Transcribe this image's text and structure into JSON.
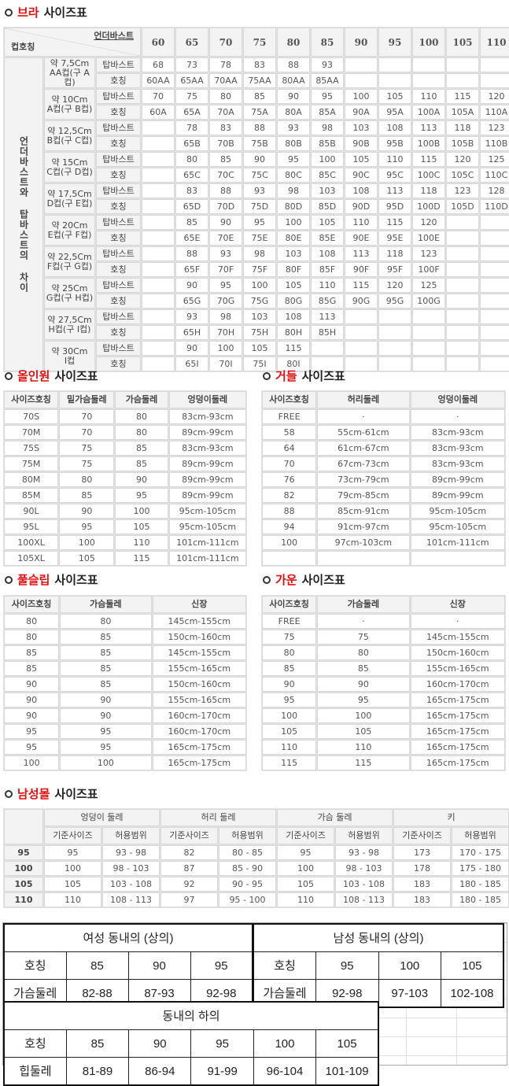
{
  "bra": {
    "title_red": "브라",
    "title_rest": "사이즈표",
    "corner_top": "언더바스트",
    "corner_bottom": "컵호칭",
    "side_label": "언더바스트와 탑바스트의 차이",
    "sizes": [
      "60",
      "65",
      "70",
      "75",
      "80",
      "85",
      "90",
      "95",
      "100",
      "105",
      "110"
    ],
    "top_label": "탑바스트",
    "name_label": "호칭",
    "cups": [
      {
        "depth": "약 7,5Cm",
        "cup": "AA컵(구 A컵)",
        "top": [
          "68",
          "73",
          "78",
          "83",
          "88",
          "93",
          "",
          "",
          "",
          "",
          ""
        ],
        "name": [
          "60AA",
          "65AA",
          "70AA",
          "75AA",
          "80AA",
          "85AA",
          "",
          "",
          "",
          "",
          ""
        ]
      },
      {
        "depth": "약 10Cm",
        "cup": "A컵(구 B컵)",
        "top": [
          "70",
          "75",
          "80",
          "85",
          "90",
          "95",
          "100",
          "105",
          "110",
          "115",
          "120"
        ],
        "name": [
          "60A",
          "65A",
          "70A",
          "75A",
          "80A",
          "85A",
          "90A",
          "95A",
          "100A",
          "105A",
          "110A"
        ]
      },
      {
        "depth": "약 12,5Cm",
        "cup": "B컵(구 C컵)",
        "top": [
          "",
          "78",
          "83",
          "88",
          "93",
          "98",
          "103",
          "108",
          "113",
          "118",
          "123"
        ],
        "name": [
          "",
          "65B",
          "70B",
          "75B",
          "80B",
          "85B",
          "90B",
          "95B",
          "100B",
          "105B",
          "110B"
        ]
      },
      {
        "depth": "약 15Cm",
        "cup": "C컵(구 D컵)",
        "top": [
          "",
          "80",
          "85",
          "90",
          "95",
          "100",
          "105",
          "110",
          "115",
          "120",
          "125"
        ],
        "name": [
          "",
          "65C",
          "70C",
          "75C",
          "80C",
          "85C",
          "90C",
          "95C",
          "100C",
          "105C",
          "110C"
        ]
      },
      {
        "depth": "약 17,5Cm",
        "cup": "D컵(구 E컵)",
        "top": [
          "",
          "83",
          "88",
          "93",
          "98",
          "103",
          "108",
          "113",
          "118",
          "123",
          "128"
        ],
        "name": [
          "",
          "65D",
          "70D",
          "75D",
          "80D",
          "85D",
          "90D",
          "95D",
          "100D",
          "105D",
          "110D"
        ]
      },
      {
        "depth": "약 20Cm",
        "cup": "E컵(구 F컵)",
        "top": [
          "",
          "85",
          "90",
          "95",
          "100",
          "105",
          "110",
          "115",
          "120",
          "",
          ""
        ],
        "name": [
          "",
          "65E",
          "70E",
          "75E",
          "80E",
          "85E",
          "90E",
          "95E",
          "100E",
          "",
          ""
        ]
      },
      {
        "depth": "약 22,5Cm",
        "cup": "F컵(구 G컵)",
        "top": [
          "",
          "88",
          "93",
          "98",
          "103",
          "108",
          "113",
          "118",
          "123",
          "",
          ""
        ],
        "name": [
          "",
          "65F",
          "70F",
          "75F",
          "80F",
          "85F",
          "90F",
          "95F",
          "100F",
          "",
          ""
        ]
      },
      {
        "depth": "약 25Cm",
        "cup": "G컵(구 H컵)",
        "top": [
          "",
          "90",
          "95",
          "100",
          "105",
          "110",
          "115",
          "120",
          "125",
          "",
          ""
        ],
        "name": [
          "",
          "65G",
          "70G",
          "75G",
          "80G",
          "85G",
          "90G",
          "95G",
          "100G",
          "",
          ""
        ]
      },
      {
        "depth": "약 27,5Cm",
        "cup": "H컵(구 I컵)",
        "top": [
          "",
          "93",
          "98",
          "103",
          "108",
          "113",
          "",
          "",
          "",
          "",
          ""
        ],
        "name": [
          "",
          "65H",
          "70H",
          "75H",
          "80H",
          "85H",
          "",
          "",
          "",
          "",
          ""
        ]
      },
      {
        "depth": "약 30Cm",
        "cup": "I컵",
        "top": [
          "",
          "90",
          "100",
          "105",
          "115",
          "",
          "",
          "",
          "",
          "",
          ""
        ],
        "name": [
          "",
          "65I",
          "70I",
          "75I",
          "80I",
          "",
          "",
          "",
          "",
          "",
          ""
        ]
      }
    ]
  },
  "allinone": {
    "title_red": "올인원",
    "title_rest": "사이즈표",
    "headers": [
      "사이즈호칭",
      "밑가슴둘레",
      "가슴둘레",
      "엉덩이둘레"
    ],
    "rows": [
      [
        "70S",
        "70",
        "80",
        "83cm-93cm"
      ],
      [
        "70M",
        "70",
        "80",
        "89cm-99cm"
      ],
      [
        "75S",
        "75",
        "85",
        "83cm-93cm"
      ],
      [
        "75M",
        "75",
        "85",
        "89cm-99cm"
      ],
      [
        "80M",
        "80",
        "90",
        "89cm-99cm"
      ],
      [
        "85M",
        "85",
        "95",
        "89cm-99cm"
      ],
      [
        "90L",
        "90",
        "100",
        "95cm-105cm"
      ],
      [
        "95L",
        "95",
        "105",
        "95cm-105cm"
      ],
      [
        "100XL",
        "100",
        "110",
        "101cm-111cm"
      ],
      [
        "105XL",
        "105",
        "115",
        "101cm-111cm"
      ]
    ]
  },
  "girdle": {
    "title_red": "거들",
    "title_rest": "사이즈표",
    "headers": [
      "사이즈호칭",
      "허리둘레",
      "엉덩이둘레"
    ],
    "rows": [
      [
        "FREE",
        "·",
        "·"
      ],
      [
        "58",
        "55cm-61cm",
        "83cm-93cm"
      ],
      [
        "64",
        "61cm-67cm",
        "83cm-93cm"
      ],
      [
        "70",
        "67cm-73cm",
        "83cm-93cm"
      ],
      [
        "76",
        "73cm-79cm",
        "89cm-99cm"
      ],
      [
        "82",
        "79cm-85cm",
        "89cm-99cm"
      ],
      [
        "88",
        "85cm-91cm",
        "95cm-105cm"
      ],
      [
        "94",
        "91cm-97cm",
        "95cm-105cm"
      ],
      [
        "100",
        "97cm-103cm",
        "101cm-111cm"
      ],
      [
        "",
        "",
        ""
      ]
    ]
  },
  "fullslip": {
    "title_red": "풀슬립",
    "title_rest": "사이즈표",
    "headers": [
      "사이즈호칭",
      "가슴둘레",
      "신장"
    ],
    "rows": [
      [
        "80",
        "80",
        "145cm-155cm"
      ],
      [
        "80",
        "85",
        "150cm-160cm"
      ],
      [
        "85",
        "85",
        "145cm-155cm"
      ],
      [
        "85",
        "85",
        "155cm-165cm"
      ],
      [
        "90",
        "85",
        "150cm-160cm"
      ],
      [
        "90",
        "90",
        "155cm-165cm"
      ],
      [
        "90",
        "90",
        "160cm-170cm"
      ],
      [
        "95",
        "95",
        "160cm-170cm"
      ],
      [
        "95",
        "95",
        "165cm-175cm"
      ],
      [
        "100",
        "100",
        "165cm-175cm"
      ]
    ]
  },
  "gown": {
    "title_red": "가운",
    "title_rest": "사이즈표",
    "headers": [
      "사이즈호칭",
      "가슴둘레",
      "신장"
    ],
    "rows": [
      [
        "FREE",
        "·",
        "·"
      ],
      [
        "75",
        "75",
        "145cm-155cm"
      ],
      [
        "80",
        "80",
        "150cm-160cm"
      ],
      [
        "85",
        "85",
        "155cm-165cm"
      ],
      [
        "90",
        "90",
        "160cm-170cm"
      ],
      [
        "95",
        "95",
        "165cm-175cm"
      ],
      [
        "100",
        "100",
        "165cm-175cm"
      ],
      [
        "105",
        "105",
        "165cm-175cm"
      ],
      [
        "110",
        "110",
        "165cm-175cm"
      ],
      [
        "115",
        "115",
        "165cm-175cm"
      ]
    ]
  },
  "men": {
    "title_red": "남성몰",
    "title_rest": "사이즈표",
    "groups": [
      "엉덩이 둘레",
      "허리 둘레",
      "가슴 둘레",
      "키"
    ],
    "sub": [
      "기준사이즈",
      "허용범위"
    ],
    "rows": [
      [
        "95",
        "95",
        "93 - 98",
        "82",
        "80 - 85",
        "95",
        "93 - 98",
        "173",
        "170 - 175"
      ],
      [
        "100",
        "100",
        "98 - 103",
        "87",
        "85 - 90",
        "100",
        "98 - 103",
        "178",
        "175 - 180"
      ],
      [
        "105",
        "105",
        "103 - 108",
        "92",
        "90 - 95",
        "105",
        "103 - 108",
        "183",
        "180 - 185"
      ],
      [
        "110",
        "110",
        "108 - 113",
        "97",
        "95 - 100",
        "110",
        "108 - 113",
        "183",
        "180 - 185"
      ]
    ]
  },
  "innerwear": {
    "women_title": "여성 동내의 (상의)",
    "men_title": "남성 동내의 (상의)",
    "bottom_title": "동내의 하의",
    "women": [
      [
        "호칭",
        "85",
        "90",
        "95"
      ],
      [
        "가슴둘레",
        "82-88",
        "87-93",
        "92-98"
      ]
    ],
    "men": [
      [
        "호칭",
        "95",
        "100",
        "105"
      ],
      [
        "가슴둘레",
        "92-98",
        "97-103",
        "102-108"
      ]
    ],
    "bottom": [
      [
        "호칭",
        "85",
        "90",
        "95",
        "100",
        "105"
      ],
      [
        "힙둘레",
        "81-89",
        "86-94",
        "91-99",
        "96-104",
        "101-109"
      ]
    ]
  }
}
